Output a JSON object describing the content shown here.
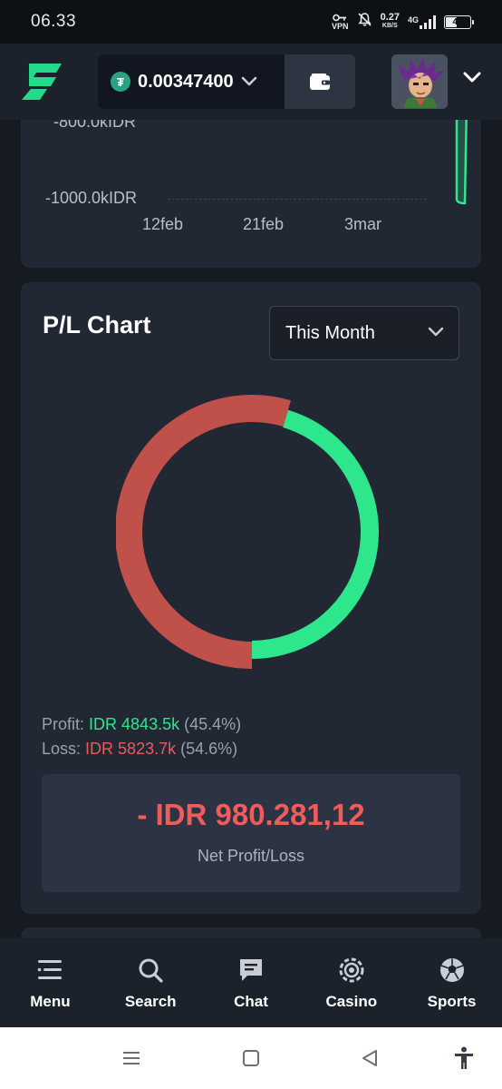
{
  "status_bar": {
    "time": "06.33",
    "vpn": "VPN",
    "speed_value": "0.27",
    "speed_unit": "KB/S",
    "network": "4G",
    "battery": "43"
  },
  "header": {
    "currency_icon": "usdt-icon",
    "balance": "0.00347400",
    "wallet_icon": "wallet-icon",
    "avatar": "user-avatar"
  },
  "top_chart": {
    "y_labels": [
      "-800.0kIDR",
      "-1000.0kIDR"
    ],
    "x_labels": [
      "12feb",
      "21feb",
      "3mar"
    ]
  },
  "pl_chart": {
    "title": "P/L Chart",
    "period": "This Month",
    "profit_label": "Profit:",
    "profit_value": "IDR 4843.5k",
    "profit_pct": "(45.4%)",
    "loss_label": "Loss:",
    "loss_value": "IDR 5823.7k",
    "loss_pct": "(54.6%)",
    "net_value": "- IDR 980.281,12",
    "net_label": "Net Profit/Loss",
    "colors": {
      "profit": "#2ee68c",
      "loss": "#c0504a"
    }
  },
  "chart_data": {
    "type": "pie",
    "categories": [
      "Profit",
      "Loss"
    ],
    "values": [
      45.4,
      54.6
    ],
    "title": "P/L Chart"
  },
  "bottom_nav": {
    "items": [
      {
        "label": "Menu",
        "icon": "menu-icon"
      },
      {
        "label": "Search",
        "icon": "search-icon"
      },
      {
        "label": "Chat",
        "icon": "chat-icon"
      },
      {
        "label": "Casino",
        "icon": "casino-chip-icon"
      },
      {
        "label": "Sports",
        "icon": "soccer-ball-icon"
      }
    ]
  },
  "system_nav": {
    "buttons": [
      "recent-apps-icon",
      "home-icon",
      "back-icon",
      "accessibility-icon"
    ]
  }
}
